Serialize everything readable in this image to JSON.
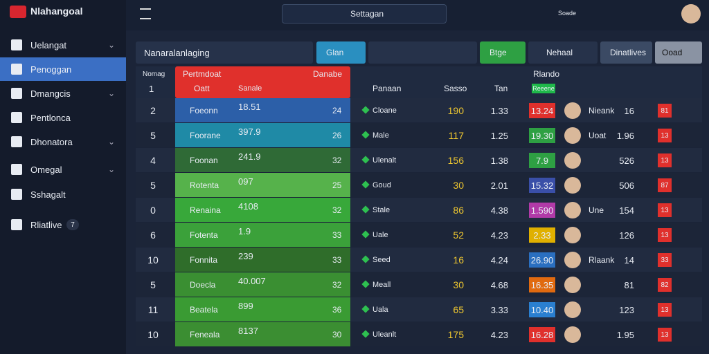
{
  "sidebar": {
    "logo": "Nlahangoal",
    "menu": [
      "Uelangat",
      "Penoggan",
      "Dmangcis",
      "Pentlonca",
      "Dhonatora",
      "Omegal",
      "Sshagalt",
      "Rliatlive"
    ],
    "badge": "7"
  },
  "topbar": {
    "search": "Settagan",
    "user": "Soade"
  },
  "toolbar": {
    "dropdown": "Nanaralanlaging",
    "glan": "Glan",
    "btge": "Btge",
    "nehaal": "Nehaal",
    "dinatlives": "Dinatlives",
    "ooad": "Ooad"
  },
  "table": {
    "headers": {
      "rank": "Nomag",
      "first": "1",
      "group": "Pertmdoat",
      "team": "Oatt",
      "score": "Sanale",
      "pct": "Danabe",
      "name": "Panaan",
      "num": "Sasso",
      "odds": "Tan",
      "right": "Rlando",
      "badge": "Reeene"
    },
    "rows": [
      {
        "rank": "2",
        "team": "Foeonn",
        "score": "18.51",
        "pct": "24",
        "name": "Cloane",
        "num": "190",
        "odds": "1.33",
        "badge": "13.24",
        "player": "Nieank",
        "val": "16",
        "tag": "81"
      },
      {
        "rank": "5",
        "team": "Foorane",
        "score": "397.9",
        "pct": "26",
        "name": "Male",
        "num": "117",
        "odds": "1.25",
        "badge": "19.30",
        "player": "Uoat",
        "val": "1.96",
        "tag": "13"
      },
      {
        "rank": "4",
        "team": "Foonan",
        "score": "241.9",
        "pct": "32",
        "name": "Ulenalt",
        "num": "156",
        "odds": "1.38",
        "badge": "7.9",
        "val": "526",
        "tag": "13"
      },
      {
        "rank": "5",
        "team": "Rotenta",
        "score": "097",
        "pct": "25",
        "name": "Goud",
        "num": "30",
        "odds": "2.01",
        "badge": "15.32",
        "val": "506",
        "tag": "87"
      },
      {
        "rank": "0",
        "team": "Renaina",
        "score": "4108",
        "pct": "32",
        "name": "Stale",
        "num": "86",
        "odds": "4.38",
        "badge": "1.590",
        "player": "Une",
        "val": "154",
        "tag": "13"
      },
      {
        "rank": "6",
        "team": "Fotenta",
        "score": "1.9",
        "pct": "33",
        "name": "Uale",
        "num": "52",
        "odds": "4.23",
        "badge": "2.33",
        "val": "126",
        "tag": "13"
      },
      {
        "rank": "10",
        "team": "Fonnita",
        "score": "239",
        "pct": "33",
        "name": "Seed",
        "num": "16",
        "odds": "4.24",
        "badge": "26.90",
        "player": "Rlaank",
        "val": "14",
        "tag": "33"
      },
      {
        "rank": "5",
        "team": "Doecla",
        "score": "40.007",
        "pct": "32",
        "name": "Meall",
        "num": "30",
        "odds": "4.68",
        "badge": "16.35",
        "val": "81",
        "tag": "82"
      },
      {
        "rank": "11",
        "team": "Beatela",
        "score": "899",
        "pct": "36",
        "name": "Uala",
        "num": "65",
        "odds": "3.33",
        "badge": "10.40",
        "val": "123",
        "tag": "13"
      },
      {
        "rank": "10",
        "team": "Feneala",
        "score": "8137",
        "pct": "30",
        "name": "Uleanlt",
        "num": "175",
        "odds": "4.23",
        "badge": "16.28",
        "val": "1.95",
        "tag": "13"
      }
    ]
  }
}
